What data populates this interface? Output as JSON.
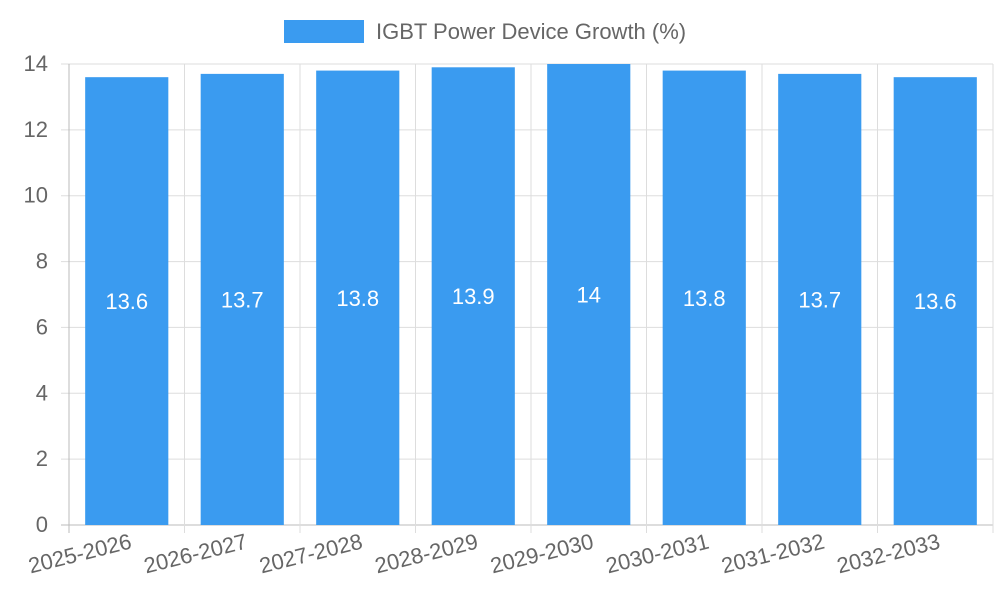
{
  "chart_data": {
    "type": "bar",
    "title": "",
    "xlabel": "",
    "ylabel": "",
    "categories": [
      "2025-2026",
      "2026-2027",
      "2027-2028",
      "2028-2029",
      "2029-2030",
      "2030-2031",
      "2031-2032",
      "2032-2033"
    ],
    "series": [
      {
        "name": "IGBT Power Device Growth (%)",
        "values": [
          13.6,
          13.7,
          13.8,
          13.9,
          14,
          13.8,
          13.7,
          13.6
        ],
        "color": "#3a9bf0"
      }
    ],
    "ylim": [
      0,
      14
    ],
    "yticks": [
      0,
      2,
      4,
      6,
      8,
      10,
      12,
      14
    ],
    "grid": true,
    "legend_position": "top-center",
    "data_labels": true,
    "x_tick_rotation": "slanted"
  },
  "colors": {
    "bar": "#3a9bf0",
    "grid": "#dddddd",
    "axis": "#bbbbbb",
    "tick_text": "#666666",
    "label_text": "#ffffff"
  }
}
